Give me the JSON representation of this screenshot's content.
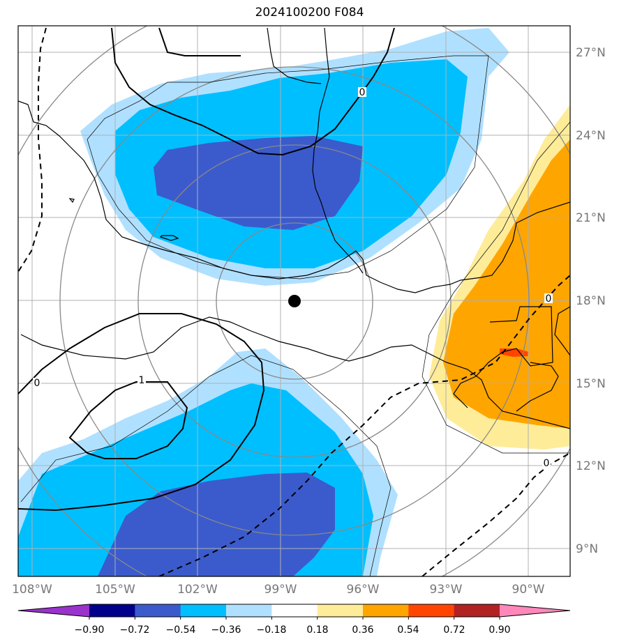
{
  "title": "2024100200 F084",
  "lat_labels": [
    "27°N",
    "24°N",
    "21°N",
    "18°N",
    "15°N",
    "12°N",
    "9°N"
  ],
  "lon_labels": [
    "108°W",
    "105°W",
    "102°W",
    "99°W",
    "96°W",
    "93°W",
    "90°W"
  ],
  "contour_labels": [
    "0",
    "0",
    "1",
    "0",
    "0"
  ],
  "colorbar": {
    "tick_labels": [
      "−0.90",
      "−0.72",
      "−0.54",
      "−0.36",
      "−0.18",
      "0.18",
      "0.36",
      "0.54",
      "0.72",
      "0.90"
    ],
    "colors": [
      "#9933cc",
      "#00008b",
      "#3b5bcc",
      "#00bfff",
      "#b0e0ff",
      "#ffffff",
      "#ffec99",
      "#ffa500",
      "#ff4500",
      "#b22222",
      "#ff88bb"
    ]
  },
  "colors": {
    "light_blue": "#b0e0ff",
    "deep_sky": "#00bfff",
    "royal_blue": "#3b5bcc",
    "light_yellow": "#ffec99",
    "orange": "#ffa500",
    "red_orange": "#ff4500"
  }
}
